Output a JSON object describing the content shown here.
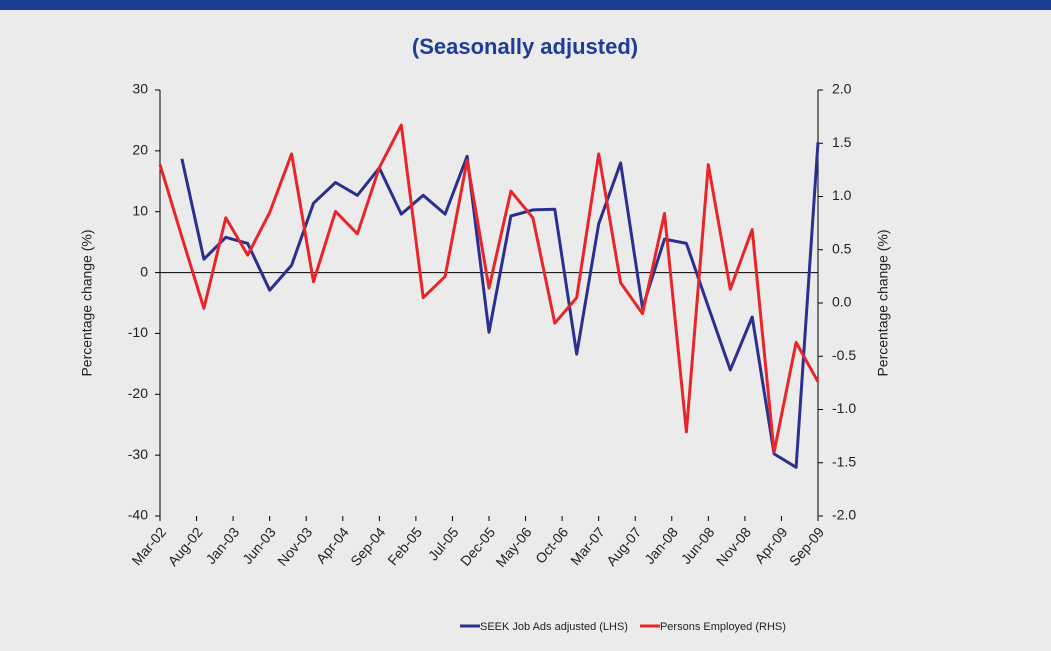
{
  "chart_data": {
    "type": "line",
    "title": "(Seasonally adjusted)",
    "ylabel": "Percentage change (%)",
    "y2label": "Percentage change (%)",
    "x": [
      "2002-03",
      "2002-06",
      "2002-09",
      "2002-12",
      "2003-03",
      "2003-06",
      "2003-09",
      "2003-12",
      "2004-03",
      "2004-06",
      "2004-09",
      "2004-12",
      "2005-03",
      "2005-06",
      "2005-09",
      "2005-12",
      "2006-03",
      "2006-06",
      "2006-09",
      "2006-12",
      "2007-03",
      "2007-06",
      "2007-09",
      "2007-12",
      "2008-03",
      "2008-06",
      "2008-09",
      "2008-12",
      "2009-03",
      "2009-06",
      "2009-09"
    ],
    "xlim": [
      "2002-03",
      "2009-09"
    ],
    "xticks": [
      {
        "value": "2002-03",
        "label": "Mar-02"
      },
      {
        "value": "2002-08",
        "label": "Aug-02"
      },
      {
        "value": "2003-01",
        "label": "Jan-03"
      },
      {
        "value": "2003-06",
        "label": "Jun-03"
      },
      {
        "value": "2003-11",
        "label": "Nov-03"
      },
      {
        "value": "2004-04",
        "label": "Apr-04"
      },
      {
        "value": "2004-09",
        "label": "Sep-04"
      },
      {
        "value": "2005-02",
        "label": "Feb-05"
      },
      {
        "value": "2005-07",
        "label": "Jul-05"
      },
      {
        "value": "2005-12",
        "label": "Dec-05"
      },
      {
        "value": "2006-05",
        "label": "May-06"
      },
      {
        "value": "2006-10",
        "label": "Oct-06"
      },
      {
        "value": "2007-03",
        "label": "Mar-07"
      },
      {
        "value": "2007-08",
        "label": "Aug-07"
      },
      {
        "value": "2008-01",
        "label": "Jan-08"
      },
      {
        "value": "2008-06",
        "label": "Jun-08"
      },
      {
        "value": "2008-11",
        "label": "Nov-08"
      },
      {
        "value": "2009-04",
        "label": "Apr-09"
      },
      {
        "value": "2009-09",
        "label": "Sep-09"
      }
    ],
    "ylim": [
      -40,
      30
    ],
    "yticks": [
      -40,
      -30,
      -20,
      -10,
      0,
      10,
      20,
      30
    ],
    "y2lim": [
      -2,
      2
    ],
    "y2ticks": [
      {
        "value": -2,
        "label": "-2.0"
      },
      {
        "value": -1.5,
        "label": "-1.5"
      },
      {
        "value": -1,
        "label": "-1.0"
      },
      {
        "value": -0.5,
        "label": "-0.5"
      },
      {
        "value": 0,
        "label": "0.0"
      },
      {
        "value": 0.5,
        "label": "0.5"
      },
      {
        "value": 1,
        "label": "1.0"
      },
      {
        "value": 1.5,
        "label": "1.5"
      },
      {
        "value": 2,
        "label": "2.0"
      }
    ],
    "series": [
      {
        "name": "SEEK Job  Ads adjusted (LHS)",
        "color": "#2b2f8f",
        "values": [
          null,
          18.7,
          2.2,
          5.8,
          4.8,
          -2.9,
          1.2,
          11.4,
          14.8,
          12.7,
          17.2,
          9.6,
          12.7,
          9.6,
          19.1,
          -9.8,
          9.3,
          10.3,
          10.4,
          -13.4,
          8.0,
          18.0,
          -5.8,
          5.5,
          4.8,
          -5.6,
          -16.0,
          -7.3,
          -29.8,
          -32.0,
          21.4
        ]
      },
      {
        "name": "Persons Employed (RHS)",
        "color": "#e8262a",
        "axis": "y2",
        "values": [
          1.3,
          0.62,
          -0.05,
          0.8,
          0.45,
          0.85,
          1.4,
          0.2,
          0.86,
          0.65,
          1.27,
          1.67,
          0.05,
          0.25,
          1.34,
          0.14,
          1.05,
          0.8,
          -0.19,
          0.05,
          1.4,
          0.19,
          -0.1,
          0.84,
          -1.21,
          1.3,
          0.13,
          0.69,
          -1.4,
          -0.37,
          -0.74
        ]
      }
    ]
  }
}
